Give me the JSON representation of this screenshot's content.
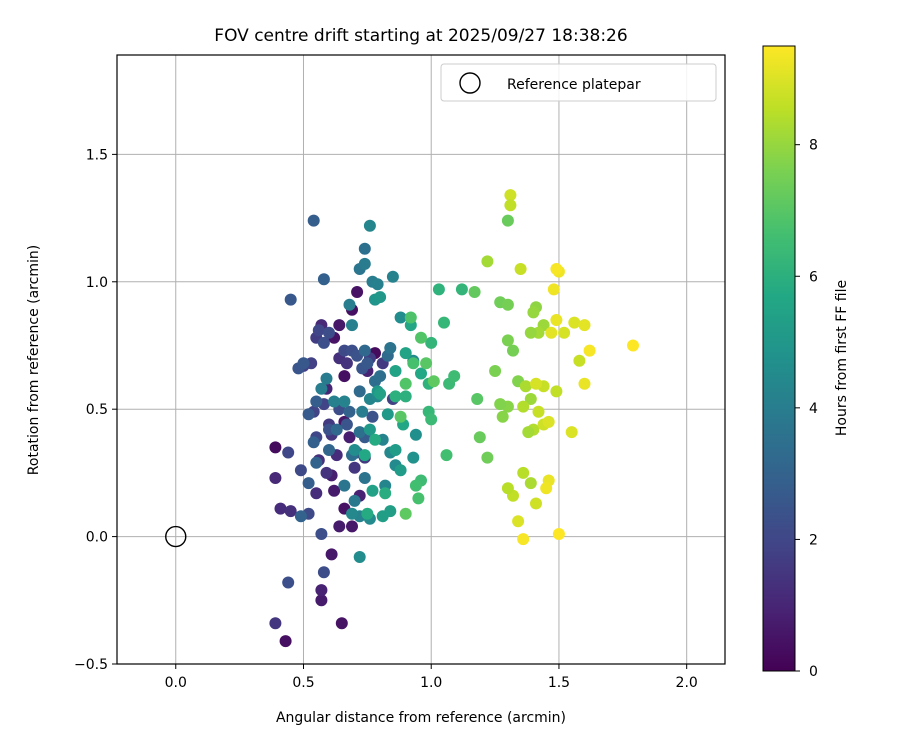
{
  "chart_data": {
    "type": "scatter",
    "title": "FOV centre drift starting at 2025/09/27 18:38:26",
    "xlabel": "Angular distance from reference (arcmin)",
    "ylabel": "Rotation from reference (arcmin)",
    "xlim": [
      -0.23,
      2.15
    ],
    "ylim": [
      -0.5,
      1.89
    ],
    "xticks": [
      0.0,
      0.5,
      1.0,
      1.5,
      2.0
    ],
    "xtick_labels": [
      "0.0",
      "0.5",
      "1.0",
      "1.5",
      "2.0"
    ],
    "yticks": [
      -0.5,
      0.0,
      0.5,
      1.0,
      1.5
    ],
    "ytick_labels": [
      "−0.5",
      "0.0",
      "0.5",
      "1.0",
      "1.5"
    ],
    "grid": true,
    "legend": {
      "position": "top-right",
      "label": "Reference platepar"
    },
    "reference_point": {
      "x": 0.0,
      "y": 0.0
    },
    "colorbar": {
      "label": "Hours from first FF file",
      "colormap": "viridis",
      "range": [
        0,
        9.5
      ],
      "ticks": [
        0,
        2,
        4,
        6,
        8
      ],
      "tick_labels": [
        "0",
        "2",
        "4",
        "6",
        "8"
      ]
    },
    "points": [
      [
        0.39,
        0.35,
        0.3
      ],
      [
        0.43,
        -0.41,
        0.4
      ],
      [
        0.65,
        -0.34,
        0.5
      ],
      [
        0.57,
        -0.25,
        0.7
      ],
      [
        0.57,
        -0.21,
        0.9
      ],
      [
        0.61,
        -0.07,
        0.6
      ],
      [
        0.66,
        0.63,
        0.4
      ],
      [
        0.62,
        0.78,
        0.5
      ],
      [
        0.64,
        0.83,
        0.6
      ],
      [
        0.78,
        0.72,
        0.3
      ],
      [
        0.69,
        0.89,
        0.4
      ],
      [
        0.71,
        0.96,
        0.5
      ],
      [
        0.66,
        0.11,
        0.5
      ],
      [
        0.69,
        0.04,
        0.6
      ],
      [
        0.64,
        0.04,
        0.7
      ],
      [
        0.61,
        0.24,
        0.8
      ],
      [
        0.66,
        0.45,
        0.6
      ],
      [
        0.62,
        0.18,
        0.7
      ],
      [
        0.72,
        0.16,
        0.9
      ],
      [
        0.68,
        0.39,
        0.8
      ],
      [
        0.75,
        0.65,
        0.9
      ],
      [
        0.59,
        0.58,
        1.0
      ],
      [
        0.39,
        0.23,
        1.1
      ],
      [
        0.41,
        0.11,
        1.2
      ],
      [
        0.45,
        0.1,
        1.3
      ],
      [
        0.39,
        -0.34,
        1.5
      ],
      [
        0.57,
        0.83,
        1.1
      ],
      [
        0.55,
        0.17,
        1.2
      ],
      [
        0.56,
        0.3,
        1.3
      ],
      [
        0.59,
        0.25,
        1.4
      ],
      [
        0.61,
        0.4,
        1.5
      ],
      [
        0.63,
        0.32,
        1.2
      ],
      [
        0.64,
        0.7,
        1.3
      ],
      [
        0.67,
        0.68,
        1.4
      ],
      [
        0.7,
        0.27,
        1.5
      ],
      [
        0.74,
        0.31,
        1.6
      ],
      [
        0.76,
        0.7,
        1.7
      ],
      [
        0.81,
        0.68,
        1.6
      ],
      [
        0.85,
        0.54,
        1.8
      ],
      [
        0.55,
        0.78,
        1.7
      ],
      [
        0.53,
        0.68,
        1.8
      ],
      [
        0.58,
        0.52,
        1.9
      ],
      [
        0.6,
        0.44,
        1.6
      ],
      [
        0.54,
        0.49,
        1.9
      ],
      [
        0.5,
        0.67,
        1.8
      ],
      [
        0.44,
        0.33,
        2.0
      ],
      [
        0.49,
        0.26,
        2.1
      ],
      [
        0.52,
        0.09,
        2.1
      ],
      [
        0.58,
        -0.14,
        2.2
      ],
      [
        0.57,
        0.01,
        2.3
      ],
      [
        0.44,
        -0.18,
        2.3
      ],
      [
        0.56,
        0.81,
        2.0
      ],
      [
        0.6,
        0.8,
        2.2
      ],
      [
        0.58,
        0.76,
        2.3
      ],
      [
        0.66,
        0.73,
        2.1
      ],
      [
        0.69,
        0.73,
        2.3
      ],
      [
        0.71,
        0.71,
        2.4
      ],
      [
        0.73,
        0.66,
        2.5
      ],
      [
        0.75,
        0.68,
        2.6
      ],
      [
        0.55,
        0.39,
        2.0
      ],
      [
        0.6,
        0.42,
        2.4
      ],
      [
        0.64,
        0.5,
        2.2
      ],
      [
        0.67,
        0.44,
        2.5
      ],
      [
        0.71,
        0.33,
        2.6
      ],
      [
        0.74,
        0.39,
        2.7
      ],
      [
        0.77,
        0.47,
        2.4
      ],
      [
        0.48,
        0.66,
        2.5
      ],
      [
        0.5,
        0.68,
        2.6
      ],
      [
        0.52,
        0.48,
        2.7
      ],
      [
        0.55,
        0.53,
        2.8
      ],
      [
        0.54,
        1.24,
        2.8
      ],
      [
        0.45,
        0.93,
        2.6
      ],
      [
        0.58,
        1.01,
        2.9
      ],
      [
        0.54,
        0.37,
        2.9
      ],
      [
        0.52,
        0.21,
        2.8
      ],
      [
        0.49,
        0.08,
        3.0
      ],
      [
        0.55,
        0.29,
        3.0
      ],
      [
        0.6,
        0.34,
        3.1
      ],
      [
        0.63,
        0.42,
        3.2
      ],
      [
        0.68,
        0.49,
        3.0
      ],
      [
        0.72,
        0.57,
        3.3
      ],
      [
        0.74,
        0.73,
        3.2
      ],
      [
        0.78,
        0.61,
        3.4
      ],
      [
        0.8,
        0.63,
        3.5
      ],
      [
        0.83,
        0.71,
        3.3
      ],
      [
        0.84,
        0.74,
        3.6
      ],
      [
        0.72,
        0.41,
        3.5
      ],
      [
        0.69,
        0.32,
        3.4
      ],
      [
        0.66,
        0.2,
        3.7
      ],
      [
        0.7,
        0.14,
        3.8
      ],
      [
        0.74,
        0.23,
        3.6
      ],
      [
        0.74,
        1.13,
        3.5
      ],
      [
        0.72,
        1.05,
        3.7
      ],
      [
        0.74,
        1.07,
        3.9
      ],
      [
        0.77,
        1.0,
        4.0
      ],
      [
        0.79,
        0.99,
        4.1
      ],
      [
        0.85,
        1.02,
        4.2
      ],
      [
        0.76,
        1.22,
        4.3
      ],
      [
        0.68,
        0.91,
        4.0
      ],
      [
        0.69,
        0.83,
        4.1
      ],
      [
        0.59,
        0.62,
        3.9
      ],
      [
        0.57,
        0.58,
        4.0
      ],
      [
        0.62,
        0.53,
        4.1
      ],
      [
        0.66,
        0.53,
        4.2
      ],
      [
        0.73,
        0.49,
        4.0
      ],
      [
        0.76,
        0.54,
        4.3
      ],
      [
        0.79,
        0.55,
        4.4
      ],
      [
        0.81,
        0.38,
        4.2
      ],
      [
        0.84,
        0.33,
        4.4
      ],
      [
        0.86,
        0.28,
        4.5
      ],
      [
        0.82,
        0.2,
        4.3
      ],
      [
        0.72,
        0.08,
        4.2
      ],
      [
        0.76,
        0.07,
        4.5
      ],
      [
        0.72,
        -0.08,
        4.6
      ],
      [
        0.69,
        0.09,
        4.4
      ],
      [
        0.7,
        0.34,
        4.6
      ],
      [
        0.88,
        0.86,
        4.6
      ],
      [
        0.93,
        0.69,
        4.5
      ],
      [
        0.94,
        0.4,
        4.7
      ],
      [
        0.93,
        0.31,
        4.8
      ],
      [
        0.78,
        0.93,
        4.9
      ],
      [
        0.8,
        0.94,
        5.0
      ],
      [
        0.79,
        0.57,
        5.0
      ],
      [
        0.76,
        0.42,
        5.1
      ],
      [
        0.83,
        0.48,
        5.1
      ],
      [
        0.86,
        0.34,
        5.2
      ],
      [
        0.88,
        0.26,
        5.2
      ],
      [
        0.81,
        0.08,
        5.3
      ],
      [
        0.84,
        0.1,
        5.3
      ],
      [
        0.77,
        0.18,
        5.4
      ],
      [
        0.8,
        0.56,
        5.4
      ],
      [
        0.86,
        0.65,
        5.5
      ],
      [
        0.9,
        0.72,
        5.5
      ],
      [
        0.89,
        0.44,
        5.6
      ],
      [
        0.92,
        0.83,
        5.6
      ],
      [
        0.96,
        0.64,
        5.7
      ],
      [
        0.74,
        0.32,
        5.7
      ],
      [
        0.78,
        0.38,
        5.8
      ],
      [
        0.82,
        0.17,
        5.9
      ],
      [
        0.75,
        0.09,
        5.8
      ],
      [
        0.86,
        0.55,
        6.0
      ],
      [
        0.9,
        0.55,
        6.0
      ],
      [
        0.99,
        0.6,
        6.1
      ],
      [
        1.0,
        0.76,
        6.2
      ],
      [
        1.03,
        0.97,
        6.1
      ],
      [
        1.05,
        0.84,
        6.3
      ],
      [
        1.12,
        0.97,
        6.2
      ],
      [
        1.07,
        0.6,
        6.4
      ],
      [
        1.09,
        0.63,
        6.5
      ],
      [
        0.99,
        0.49,
        6.3
      ],
      [
        1.0,
        0.46,
        6.4
      ],
      [
        1.06,
        0.32,
        6.6
      ],
      [
        0.96,
        0.22,
        6.5
      ],
      [
        0.94,
        0.2,
        6.6
      ],
      [
        0.95,
        0.15,
        6.7
      ],
      [
        0.92,
        0.86,
        6.8
      ],
      [
        0.96,
        0.78,
        6.9
      ],
      [
        0.93,
        0.68,
        6.7
      ],
      [
        0.9,
        0.6,
        6.9
      ],
      [
        0.88,
        0.47,
        7.0
      ],
      [
        0.9,
        0.09,
        7.1
      ],
      [
        0.98,
        0.68,
        7.0
      ],
      [
        1.01,
        0.61,
        7.1
      ],
      [
        1.17,
        0.96,
        7.2
      ],
      [
        1.18,
        0.54,
        7.0
      ],
      [
        1.19,
        0.39,
        7.3
      ],
      [
        1.22,
        0.31,
        7.4
      ],
      [
        1.3,
        1.24,
        7.3
      ],
      [
        1.27,
        0.92,
        7.4
      ],
      [
        1.3,
        0.91,
        7.5
      ],
      [
        1.3,
        0.77,
        7.6
      ],
      [
        1.32,
        0.73,
        7.5
      ],
      [
        1.34,
        0.61,
        7.7
      ],
      [
        1.25,
        0.65,
        7.6
      ],
      [
        1.3,
        0.51,
        7.8
      ],
      [
        1.27,
        0.52,
        7.7
      ],
      [
        1.28,
        0.47,
        7.8
      ],
      [
        1.41,
        0.9,
        7.9
      ],
      [
        1.4,
        0.88,
        8.0
      ],
      [
        1.44,
        0.83,
        8.1
      ],
      [
        1.42,
        0.8,
        8.2
      ],
      [
        1.39,
        0.8,
        8.0
      ],
      [
        1.37,
        0.59,
        8.3
      ],
      [
        1.39,
        0.54,
        8.1
      ],
      [
        1.4,
        0.42,
        8.4
      ],
      [
        1.38,
        0.41,
        8.2
      ],
      [
        1.36,
        0.25,
        8.5
      ],
      [
        1.39,
        0.21,
        8.3
      ],
      [
        1.32,
        0.16,
        8.6
      ],
      [
        1.36,
        0.51,
        8.4
      ],
      [
        1.3,
        0.19,
        8.5
      ],
      [
        1.22,
        1.08,
        8.2
      ],
      [
        1.35,
        1.05,
        8.7
      ],
      [
        1.31,
        1.34,
        8.8
      ],
      [
        1.31,
        1.3,
        8.6
      ],
      [
        1.44,
        0.59,
        8.7
      ],
      [
        1.41,
        0.6,
        8.9
      ],
      [
        1.42,
        0.49,
        8.7
      ],
      [
        1.44,
        0.44,
        8.8
      ],
      [
        1.49,
        0.57,
        8.6
      ],
      [
        1.46,
        0.45,
        9.0
      ],
      [
        1.52,
        0.8,
        8.9
      ],
      [
        1.55,
        0.41,
        9.0
      ],
      [
        1.41,
        0.13,
        8.8
      ],
      [
        1.34,
        0.06,
        9.0
      ],
      [
        1.56,
        0.84,
        9.0
      ],
      [
        1.58,
        0.69,
        8.7
      ],
      [
        1.6,
        0.83,
        9.1
      ],
      [
        1.6,
        0.6,
        9.2
      ],
      [
        1.47,
        0.8,
        9.1
      ],
      [
        1.49,
        0.85,
        9.2
      ],
      [
        1.5,
        1.04,
        9.3
      ],
      [
        1.49,
        1.05,
        9.4
      ],
      [
        1.62,
        0.73,
        9.4
      ],
      [
        1.48,
        0.97,
        9.3
      ],
      [
        1.46,
        0.22,
        9.2
      ],
      [
        1.45,
        0.19,
        9.3
      ],
      [
        1.36,
        -0.01,
        9.4
      ],
      [
        1.5,
        0.01,
        9.5
      ],
      [
        1.79,
        0.75,
        9.5
      ]
    ]
  }
}
